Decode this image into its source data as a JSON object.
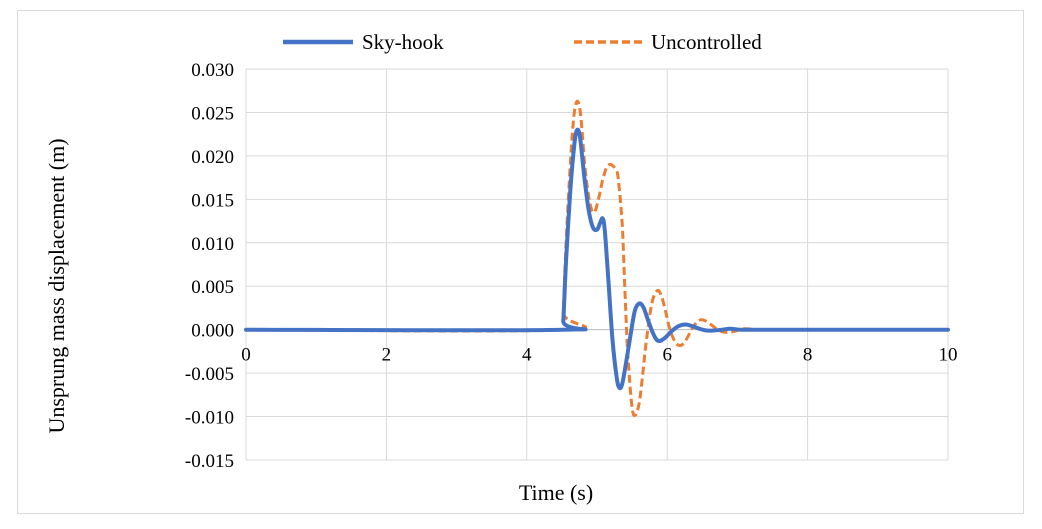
{
  "chart_data": {
    "type": "line",
    "title": "",
    "xlabel": "Time (s)",
    "ylabel": "Unsprung mass displacement (m)",
    "xlim": [
      0,
      10
    ],
    "ylim": [
      -0.015,
      0.03
    ],
    "xticks": [
      0,
      2,
      4,
      6,
      8,
      10
    ],
    "xtick_labels": [
      "0",
      "2",
      "4",
      "6",
      "8",
      "10"
    ],
    "yticks": [
      -0.015,
      -0.01,
      -0.005,
      0,
      0.005,
      0.01,
      0.015,
      0.02,
      0.025,
      0.03
    ],
    "ytick_labels": [
      "-0.015",
      "-0.010",
      "-0.005",
      "0.000",
      "0.005",
      "0.010",
      "0.015",
      "0.020",
      "0.025",
      "0.030"
    ],
    "grid": true,
    "legend_position": "top",
    "series": [
      {
        "name": "Sky-hook",
        "color": "#4472c4",
        "style": "solid",
        "x": [
          0,
          4.5,
          4.52,
          4.56,
          4.62,
          4.68,
          4.72,
          4.76,
          4.82,
          4.88,
          4.94,
          5.0,
          5.04,
          5.08,
          5.11,
          5.16,
          5.22,
          5.28,
          5.32,
          5.36,
          5.42,
          5.48,
          5.54,
          5.6,
          5.66,
          5.74,
          5.82,
          5.88,
          5.96,
          6.06,
          6.16,
          6.26,
          6.36,
          6.46,
          6.56,
          6.66,
          6.78,
          6.9,
          7.05,
          7.3,
          7.6,
          8.0,
          10.0
        ],
        "y": [
          0,
          0,
          0.001,
          0.008,
          0.016,
          0.0215,
          0.023,
          0.022,
          0.0175,
          0.0138,
          0.0118,
          0.0115,
          0.0122,
          0.0128,
          0.0115,
          0.006,
          -0.001,
          -0.0055,
          -0.0067,
          -0.0062,
          -0.0035,
          -0.0005,
          0.0022,
          0.003,
          0.0026,
          0.0008,
          -0.0008,
          -0.0013,
          -0.001,
          -0.0002,
          0.0004,
          0.0006,
          0.0004,
          0.0001,
          -0.0001,
          -0.0001,
          0.0,
          0.0001,
          0.0,
          0.0,
          0.0,
          0.0,
          0.0
        ]
      },
      {
        "name": "Uncontrolled",
        "color": "#ed7d31",
        "style": "dashed",
        "x": [
          0,
          4.5,
          4.52,
          4.56,
          4.62,
          4.67,
          4.72,
          4.77,
          4.83,
          4.9,
          4.96,
          5.02,
          5.08,
          5.14,
          5.2,
          5.26,
          5.3,
          5.36,
          5.4,
          5.44,
          5.5,
          5.55,
          5.6,
          5.64,
          5.7,
          5.78,
          5.86,
          5.92,
          5.98,
          6.04,
          6.12,
          6.2,
          6.28,
          6.36,
          6.44,
          6.52,
          6.62,
          6.72,
          6.82,
          6.95,
          7.1,
          7.3,
          7.5,
          8.0,
          10.0
        ],
        "y": [
          0,
          0,
          0.002,
          0.01,
          0.019,
          0.0245,
          0.0263,
          0.0245,
          0.0185,
          0.0145,
          0.0135,
          0.015,
          0.0172,
          0.0187,
          0.019,
          0.0185,
          0.0175,
          0.012,
          0.004,
          -0.003,
          -0.009,
          -0.0098,
          -0.0085,
          -0.006,
          -0.0015,
          0.003,
          0.0045,
          0.0038,
          0.002,
          0.0,
          -0.0015,
          -0.0018,
          -0.001,
          0.0002,
          0.001,
          0.0011,
          0.0006,
          0.0,
          -0.0003,
          -0.0002,
          0.0001,
          0.0,
          0.0,
          0.0,
          0.0
        ]
      }
    ]
  }
}
